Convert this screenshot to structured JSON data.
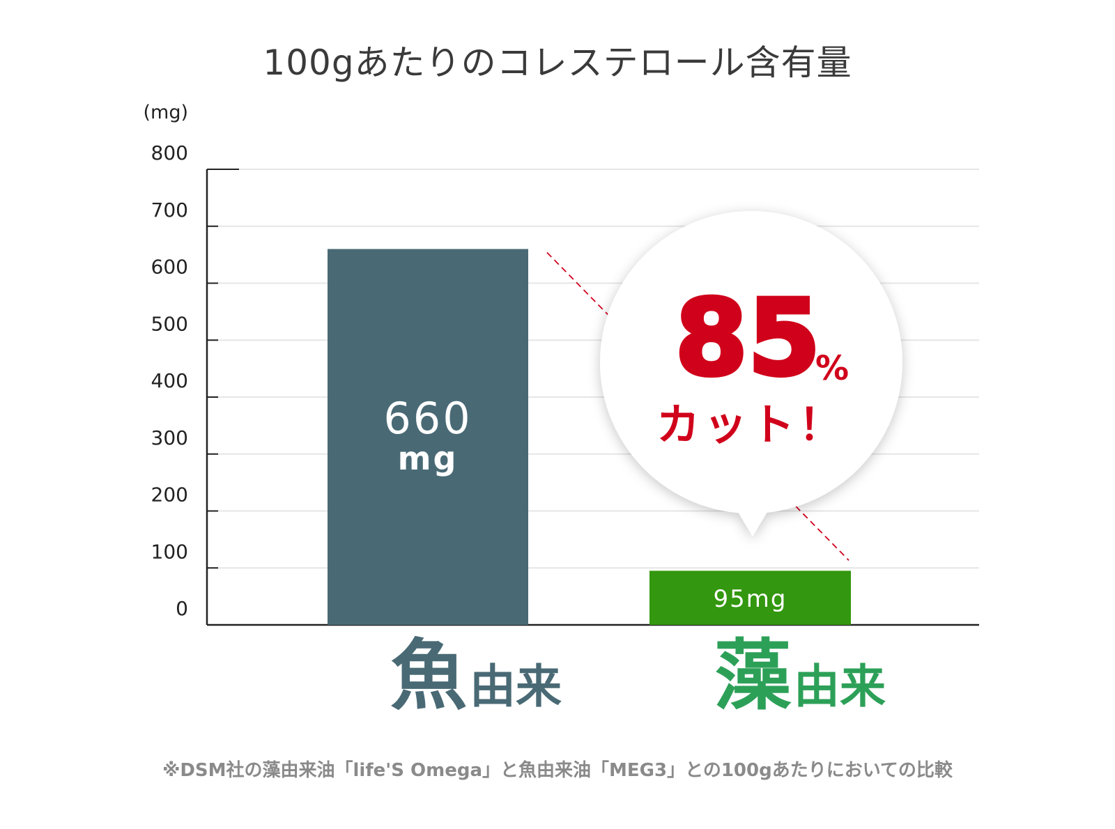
{
  "chart_data": {
    "type": "bar",
    "title": "100gあたりのコレステロール含有量",
    "unit_label": "(mg)",
    "ylim": [
      0,
      800
    ],
    "yticks": [
      "0",
      "100",
      "200",
      "300",
      "400",
      "500",
      "600",
      "700",
      "800"
    ],
    "categories": [
      {
        "big": "魚",
        "small": "由来"
      },
      {
        "big": "藻",
        "small": "由来"
      }
    ],
    "values": [
      660,
      95
    ],
    "bar_labels": [
      {
        "number": "660",
        "unit": "mg"
      },
      {
        "number": "95mg",
        "unit": ""
      }
    ],
    "colors": {
      "fish": "#496a75",
      "algae": "#33970f",
      "algae_label": "#2da058",
      "accent": "#d0021b",
      "grid": "#e6e6e6"
    },
    "annotation": {
      "percent": "85",
      "percent_sign": "%",
      "text": "カット！"
    },
    "grid": true
  },
  "footnote": "※DSM社の藻由来油「life'S Omega」と魚由来油「MEG3」との100gあたりにおいての比較"
}
